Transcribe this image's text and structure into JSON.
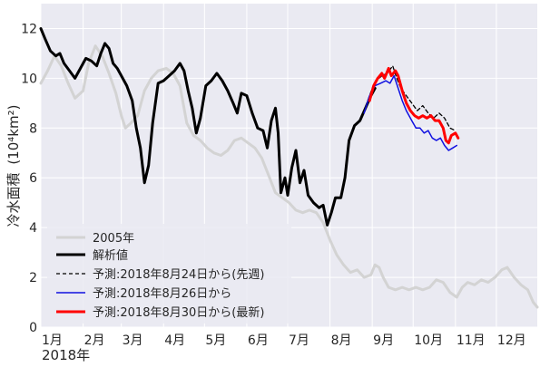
{
  "chart_data": {
    "type": "line",
    "ylabel": "冷水面積 (10⁴km²)",
    "ylabel_main": "冷水面積",
    "ylabel_unit": "(10⁴km²)",
    "xlabel": "",
    "year_label": "2018年",
    "ylim": [
      0,
      13
    ],
    "xlim": [
      "2018-01-01",
      "2018-12-31"
    ],
    "yticks": [
      0,
      2,
      4,
      6,
      8,
      10,
      12
    ],
    "x_categories": [
      "1月",
      "2月",
      "3月",
      "4月",
      "5月",
      "6月",
      "7月",
      "8月",
      "9月",
      "10月",
      "11月",
      "12月"
    ],
    "grid": true,
    "legend_position": "lower-left",
    "colors": {
      "background": "#eaeaf2",
      "grid": "#ffffff",
      "s2005": "#d3d3d3",
      "analysis": "#000000",
      "f0824": "#000000",
      "f0826": "#1010e0",
      "f0830": "#ff0000"
    },
    "series": [
      {
        "name": "2005年",
        "style": "solid",
        "points": [
          [
            "2018-01-01",
            9.8
          ],
          [
            "2018-01-06",
            10.3
          ],
          [
            "2018-01-11",
            10.9
          ],
          [
            "2018-01-16",
            10.5
          ],
          [
            "2018-01-21",
            9.8
          ],
          [
            "2018-01-26",
            9.2
          ],
          [
            "2018-02-01",
            9.5
          ],
          [
            "2018-02-05",
            10.6
          ],
          [
            "2018-02-10",
            11.3
          ],
          [
            "2018-02-15",
            10.9
          ],
          [
            "2018-02-20",
            10.2
          ],
          [
            "2018-02-25",
            9.4
          ],
          [
            "2018-03-01",
            8.5
          ],
          [
            "2018-03-04",
            8.0
          ],
          [
            "2018-03-08",
            8.2
          ],
          [
            "2018-03-13",
            8.5
          ],
          [
            "2018-03-18",
            9.5
          ],
          [
            "2018-03-23",
            10.0
          ],
          [
            "2018-03-28",
            10.3
          ],
          [
            "2018-04-03",
            10.4
          ],
          [
            "2018-04-08",
            10.2
          ],
          [
            "2018-04-13",
            9.7
          ],
          [
            "2018-04-18",
            8.2
          ],
          [
            "2018-04-23",
            7.7
          ],
          [
            "2018-04-28",
            7.5
          ],
          [
            "2018-05-03",
            7.2
          ],
          [
            "2018-05-08",
            7.0
          ],
          [
            "2018-05-13",
            6.9
          ],
          [
            "2018-05-18",
            7.1
          ],
          [
            "2018-05-23",
            7.5
          ],
          [
            "2018-05-28",
            7.6
          ],
          [
            "2018-06-02",
            7.4
          ],
          [
            "2018-06-07",
            7.2
          ],
          [
            "2018-06-12",
            6.8
          ],
          [
            "2018-06-17",
            6.1
          ],
          [
            "2018-06-22",
            5.4
          ],
          [
            "2018-06-27",
            5.2
          ],
          [
            "2018-07-02",
            5.0
          ],
          [
            "2018-07-07",
            4.7
          ],
          [
            "2018-07-12",
            4.6
          ],
          [
            "2018-07-17",
            4.7
          ],
          [
            "2018-07-22",
            4.6
          ],
          [
            "2018-07-27",
            4.2
          ],
          [
            "2018-08-01",
            3.5
          ],
          [
            "2018-08-06",
            2.9
          ],
          [
            "2018-08-11",
            2.5
          ],
          [
            "2018-08-16",
            2.2
          ],
          [
            "2018-08-21",
            2.3
          ],
          [
            "2018-08-26",
            2.0
          ],
          [
            "2018-08-31",
            2.1
          ],
          [
            "2018-09-03",
            2.5
          ],
          [
            "2018-09-06",
            2.4
          ],
          [
            "2018-09-09",
            2.0
          ],
          [
            "2018-09-13",
            1.6
          ],
          [
            "2018-09-18",
            1.5
          ],
          [
            "2018-09-23",
            1.6
          ],
          [
            "2018-09-28",
            1.5
          ],
          [
            "2018-10-03",
            1.6
          ],
          [
            "2018-10-08",
            1.5
          ],
          [
            "2018-10-13",
            1.6
          ],
          [
            "2018-10-18",
            1.9
          ],
          [
            "2018-10-23",
            1.8
          ],
          [
            "2018-10-28",
            1.4
          ],
          [
            "2018-11-02",
            1.2
          ],
          [
            "2018-11-06",
            1.6
          ],
          [
            "2018-11-10",
            1.8
          ],
          [
            "2018-11-15",
            1.7
          ],
          [
            "2018-11-20",
            1.9
          ],
          [
            "2018-11-25",
            1.8
          ],
          [
            "2018-11-30",
            2.0
          ],
          [
            "2018-12-05",
            2.3
          ],
          [
            "2018-12-09",
            2.4
          ],
          [
            "2018-12-14",
            2.0
          ],
          [
            "2018-12-19",
            1.7
          ],
          [
            "2018-12-24",
            1.5
          ],
          [
            "2018-12-28",
            1.0
          ],
          [
            "2018-12-31",
            0.8
          ]
        ]
      },
      {
        "name": "解析値",
        "style": "solid",
        "points": [
          [
            "2018-01-01",
            12.0
          ],
          [
            "2018-01-04",
            11.6
          ],
          [
            "2018-01-08",
            11.1
          ],
          [
            "2018-01-12",
            10.9
          ],
          [
            "2018-01-15",
            11.0
          ],
          [
            "2018-01-18",
            10.6
          ],
          [
            "2018-01-22",
            10.3
          ],
          [
            "2018-01-26",
            10.0
          ],
          [
            "2018-01-30",
            10.4
          ],
          [
            "2018-02-03",
            10.8
          ],
          [
            "2018-02-07",
            10.7
          ],
          [
            "2018-02-11",
            10.5
          ],
          [
            "2018-02-14",
            11.0
          ],
          [
            "2018-02-17",
            11.4
          ],
          [
            "2018-02-20",
            11.2
          ],
          [
            "2018-02-23",
            10.6
          ],
          [
            "2018-02-26",
            10.4
          ],
          [
            "2018-03-02",
            10.0
          ],
          [
            "2018-03-05",
            9.7
          ],
          [
            "2018-03-09",
            9.1
          ],
          [
            "2018-03-12",
            8.0
          ],
          [
            "2018-03-15",
            7.2
          ],
          [
            "2018-03-18",
            5.8
          ],
          [
            "2018-03-21",
            6.5
          ],
          [
            "2018-03-24",
            8.2
          ],
          [
            "2018-03-28",
            9.8
          ],
          [
            "2018-04-01",
            9.9
          ],
          [
            "2018-04-05",
            10.1
          ],
          [
            "2018-04-09",
            10.3
          ],
          [
            "2018-04-13",
            10.6
          ],
          [
            "2018-04-16",
            10.3
          ],
          [
            "2018-04-19",
            9.5
          ],
          [
            "2018-04-22",
            8.8
          ],
          [
            "2018-04-25",
            7.8
          ],
          [
            "2018-04-28",
            8.4
          ],
          [
            "2018-05-02",
            9.7
          ],
          [
            "2018-05-06",
            9.9
          ],
          [
            "2018-05-10",
            10.2
          ],
          [
            "2018-05-14",
            9.9
          ],
          [
            "2018-05-18",
            9.5
          ],
          [
            "2018-05-22",
            9.0
          ],
          [
            "2018-05-25",
            8.6
          ],
          [
            "2018-05-28",
            9.4
          ],
          [
            "2018-06-01",
            9.3
          ],
          [
            "2018-06-05",
            8.6
          ],
          [
            "2018-06-09",
            8.0
          ],
          [
            "2018-06-13",
            7.9
          ],
          [
            "2018-06-16",
            7.2
          ],
          [
            "2018-06-19",
            8.3
          ],
          [
            "2018-06-22",
            8.8
          ],
          [
            "2018-06-24",
            7.8
          ],
          [
            "2018-06-26",
            5.4
          ],
          [
            "2018-06-29",
            6.0
          ],
          [
            "2018-07-01",
            5.3
          ],
          [
            "2018-07-04",
            6.4
          ],
          [
            "2018-07-07",
            7.1
          ],
          [
            "2018-07-10",
            5.8
          ],
          [
            "2018-07-13",
            6.3
          ],
          [
            "2018-07-16",
            5.3
          ],
          [
            "2018-07-20",
            5.0
          ],
          [
            "2018-07-24",
            4.8
          ],
          [
            "2018-07-27",
            4.9
          ],
          [
            "2018-07-30",
            4.1
          ],
          [
            "2018-08-02",
            4.6
          ],
          [
            "2018-08-05",
            5.2
          ],
          [
            "2018-08-09",
            5.2
          ],
          [
            "2018-08-12",
            6.0
          ],
          [
            "2018-08-15",
            7.5
          ],
          [
            "2018-08-19",
            8.1
          ],
          [
            "2018-08-23",
            8.3
          ],
          [
            "2018-08-27",
            8.8
          ],
          [
            "2018-08-31",
            9.3
          ],
          [
            "2018-09-03",
            9.6
          ]
        ]
      },
      {
        "name": "予測:2018年8月24日から(先週)",
        "style": "dashed",
        "points": [
          [
            "2018-08-24",
            8.4
          ],
          [
            "2018-08-28",
            9.0
          ],
          [
            "2018-09-01",
            9.6
          ],
          [
            "2018-09-04",
            9.9
          ],
          [
            "2018-09-08",
            10.1
          ],
          [
            "2018-09-12",
            10.2
          ],
          [
            "2018-09-16",
            10.5
          ],
          [
            "2018-09-19",
            10.0
          ],
          [
            "2018-09-22",
            9.6
          ],
          [
            "2018-09-26",
            9.3
          ],
          [
            "2018-09-30",
            9.0
          ],
          [
            "2018-10-04",
            8.7
          ],
          [
            "2018-10-08",
            8.9
          ],
          [
            "2018-10-12",
            8.6
          ],
          [
            "2018-10-16",
            8.4
          ],
          [
            "2018-10-20",
            8.6
          ],
          [
            "2018-10-24",
            8.4
          ],
          [
            "2018-10-28",
            8.0
          ],
          [
            "2018-11-01",
            7.9
          ]
        ]
      },
      {
        "name": "予測:2018年8月26日から",
        "style": "solid",
        "points": [
          [
            "2018-08-26",
            8.6
          ],
          [
            "2018-08-30",
            9.3
          ],
          [
            "2018-09-03",
            9.7
          ],
          [
            "2018-09-07",
            9.8
          ],
          [
            "2018-09-11",
            9.9
          ],
          [
            "2018-09-14",
            9.8
          ],
          [
            "2018-09-17",
            10.1
          ],
          [
            "2018-09-20",
            9.6
          ],
          [
            "2018-09-23",
            9.1
          ],
          [
            "2018-09-26",
            8.7
          ],
          [
            "2018-09-30",
            8.3
          ],
          [
            "2018-10-03",
            8.0
          ],
          [
            "2018-10-06",
            8.0
          ],
          [
            "2018-10-09",
            7.8
          ],
          [
            "2018-10-12",
            7.9
          ],
          [
            "2018-10-15",
            7.6
          ],
          [
            "2018-10-18",
            7.5
          ],
          [
            "2018-10-21",
            7.6
          ],
          [
            "2018-10-24",
            7.3
          ],
          [
            "2018-10-27",
            7.1
          ],
          [
            "2018-10-30",
            7.2
          ],
          [
            "2018-11-02",
            7.3
          ]
        ]
      },
      {
        "name": "予測:2018年8月30日から(最新)",
        "style": "solid",
        "points": [
          [
            "2018-08-30",
            9.1
          ],
          [
            "2018-09-02",
            9.7
          ],
          [
            "2018-09-05",
            10.0
          ],
          [
            "2018-09-08",
            10.2
          ],
          [
            "2018-09-10",
            10.0
          ],
          [
            "2018-09-13",
            10.4
          ],
          [
            "2018-09-15",
            10.1
          ],
          [
            "2018-09-18",
            10.3
          ],
          [
            "2018-09-20",
            10.1
          ],
          [
            "2018-09-23",
            9.5
          ],
          [
            "2018-09-26",
            9.0
          ],
          [
            "2018-09-29",
            8.7
          ],
          [
            "2018-10-02",
            8.5
          ],
          [
            "2018-10-05",
            8.4
          ],
          [
            "2018-10-08",
            8.5
          ],
          [
            "2018-10-11",
            8.4
          ],
          [
            "2018-10-14",
            8.5
          ],
          [
            "2018-10-17",
            8.3
          ],
          [
            "2018-10-20",
            8.3
          ],
          [
            "2018-10-23",
            8.0
          ],
          [
            "2018-10-25",
            7.5
          ],
          [
            "2018-10-27",
            7.4
          ],
          [
            "2018-10-29",
            7.7
          ],
          [
            "2018-11-01",
            7.8
          ],
          [
            "2018-11-03",
            7.6
          ]
        ]
      }
    ]
  }
}
